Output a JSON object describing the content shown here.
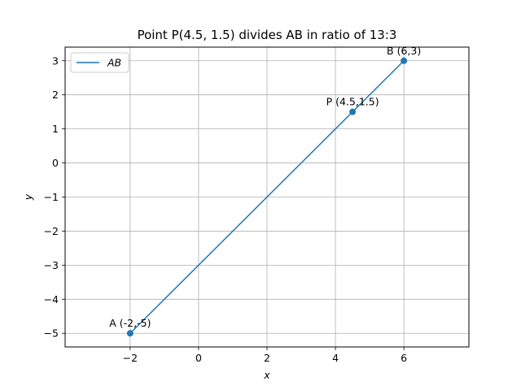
{
  "chart_data": {
    "type": "line",
    "title": "Point P(4.5, 1.5) divides AB in ratio of 13:3",
    "xlabel": "x",
    "ylabel": "y",
    "xlim": [
      -3.9,
      7.9
    ],
    "ylim": [
      -5.4,
      3.4
    ],
    "xticks": [
      -2,
      0,
      2,
      4,
      6
    ],
    "yticks": [
      -5,
      -4,
      -3,
      -2,
      -1,
      0,
      1,
      2,
      3
    ],
    "xtick_labels": [
      "−2",
      "0",
      "2",
      "4",
      "6"
    ],
    "ytick_labels": [
      "−5",
      "−4",
      "−3",
      "−2",
      "−1",
      "0",
      "1",
      "2",
      "3"
    ],
    "grid": true,
    "legend_position": "top-left",
    "series": [
      {
        "name": "AB",
        "x": [
          -2,
          6
        ],
        "y": [
          -5,
          3
        ],
        "color": "#1f77b4"
      }
    ],
    "points": [
      {
        "label": "A (-2,-5)",
        "x": -2,
        "y": -5
      },
      {
        "label": "P (4.5,1.5)",
        "x": 4.5,
        "y": 1.5
      },
      {
        "label": "B (6,3)",
        "x": 6,
        "y": 3
      }
    ]
  }
}
